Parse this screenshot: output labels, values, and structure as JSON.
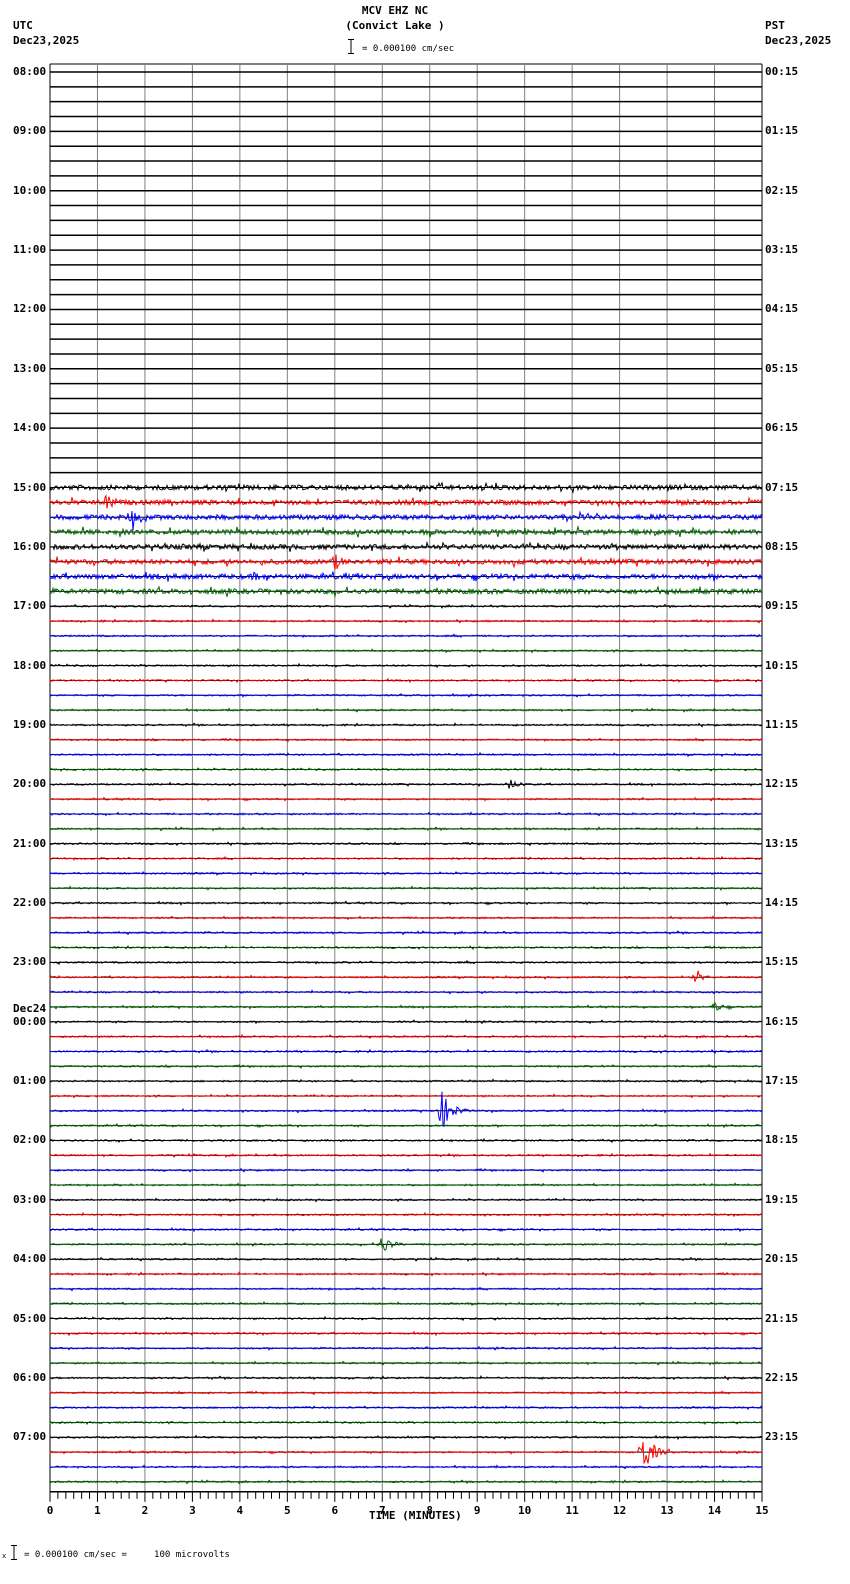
{
  "header": {
    "station": "MCV EHZ NC",
    "location": "(Convict Lake )",
    "left_tz": "UTC",
    "left_date": "Dec23,2025",
    "right_tz": "PST",
    "right_date": "Dec23,2025",
    "scale_label": "= 0.000100 cm/sec"
  },
  "footer": {
    "scale_note": "= 0.000100 cm/sec =     100 microvolts",
    "scale_prefix": "x"
  },
  "date_change_label": "Dec24",
  "colors": {
    "trace_cycle": [
      "#000000",
      "#ff0000",
      "#0000ff",
      "#006400"
    ],
    "grid": "#808080",
    "baseline": "#000000"
  },
  "chart_data": {
    "type": "line",
    "title": "MCV EHZ NC (Convict Lake )",
    "subtitle": "= 0.000100 cm/sec",
    "xlabel": "TIME (MINUTES)",
    "ylabel": "",
    "xlim": [
      0,
      15
    ],
    "x_ticks": [
      "0",
      "1",
      "2",
      "3",
      "4",
      "5",
      "6",
      "7",
      "8",
      "9",
      "10",
      "11",
      "12",
      "13",
      "14",
      "15"
    ],
    "grid": true,
    "rows_per_hour": 4,
    "row_minutes": 15,
    "total_rows": 96,
    "first_data_row": 28,
    "left_time_labels": [
      "08:00",
      "09:00",
      "10:00",
      "11:00",
      "12:00",
      "13:00",
      "14:00",
      "15:00",
      "16:00",
      "17:00",
      "18:00",
      "19:00",
      "20:00",
      "21:00",
      "22:00",
      "23:00",
      "00:00",
      "01:00",
      "02:00",
      "03:00",
      "04:00",
      "05:00",
      "06:00",
      "07:00"
    ],
    "right_time_labels": [
      "00:15",
      "01:15",
      "02:15",
      "03:15",
      "04:15",
      "05:15",
      "06:15",
      "07:15",
      "08:15",
      "09:15",
      "10:15",
      "11:15",
      "12:15",
      "13:15",
      "14:15",
      "15:15",
      "16:15",
      "17:15",
      "18:15",
      "19:15",
      "20:15",
      "21:15",
      "22:15",
      "23:15"
    ],
    "notable_events": [
      {
        "row_time_utc": "15:15",
        "minute": 1.2,
        "color": "red",
        "amplitude": "moderate"
      },
      {
        "row_time_utc": "15:30",
        "minute": 1.7,
        "color": "blue",
        "amplitude": "moderate"
      },
      {
        "row_time_utc": "16:15",
        "minute": 6.0,
        "color": "red",
        "amplitude": "moderate"
      },
      {
        "row_time_utc": "16:30",
        "minute": 4.3,
        "color": "blue",
        "amplitude": "small"
      },
      {
        "row_time_utc": "20:00",
        "minute": 9.7,
        "color": "black",
        "amplitude": "small"
      },
      {
        "row_time_utc": "23:15",
        "minute": 13.6,
        "color": "red",
        "amplitude": "small"
      },
      {
        "row_time_utc": "23:45",
        "minute": 14.0,
        "color": "green",
        "amplitude": "small"
      },
      {
        "row_time_utc": "01:30",
        "minute": 8.25,
        "color": "blue",
        "amplitude": "large"
      },
      {
        "row_time_utc": "03:45",
        "minute": 7.0,
        "color": "green",
        "amplitude": "moderate"
      },
      {
        "row_time_utc": "07:15",
        "minute": 12.5,
        "color": "red",
        "amplitude": "large"
      }
    ]
  }
}
